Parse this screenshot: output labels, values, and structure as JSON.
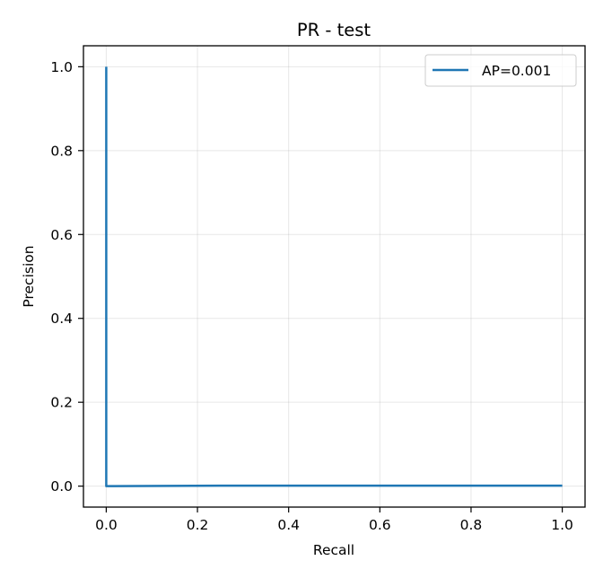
{
  "chart_data": {
    "type": "line",
    "title": "PR - test",
    "xlabel": "Recall",
    "ylabel": "Precision",
    "xlim": [
      -0.05,
      1.05
    ],
    "ylim": [
      -0.05,
      1.05
    ],
    "xticks": [
      "0.0",
      "0.2",
      "0.4",
      "0.6",
      "0.8",
      "1.0"
    ],
    "yticks": [
      "0.0",
      "0.2",
      "0.4",
      "0.6",
      "0.8",
      "1.0"
    ],
    "grid": true,
    "legend_position": "top-right",
    "series": [
      {
        "name": "AP=0.001",
        "color": "#1f77b4",
        "x": [
          0.0,
          0.0,
          0.0,
          0.25,
          1.0
        ],
        "y": [
          1.0,
          0.5,
          0.0,
          0.001,
          0.001
        ]
      }
    ]
  }
}
